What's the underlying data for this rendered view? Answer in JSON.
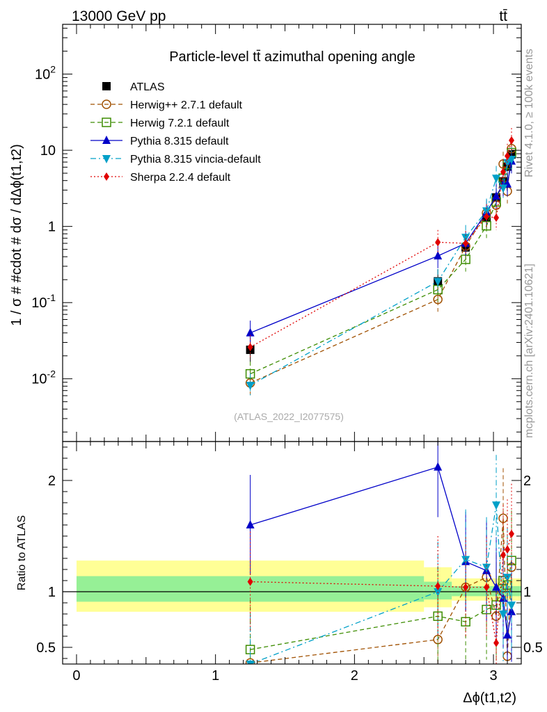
{
  "header": {
    "energy_label": "13000 GeV pp",
    "process_label": "tt̄",
    "side_label_top": "Rivet 4.1.0, ≥ 100k events",
    "side_label_bottom": "mcplots.cern.ch [arXiv:2401.10621]",
    "analysis_id": "(ATLAS_2022_I2077575)"
  },
  "chart_data": [
    {
      "type": "scatter",
      "title": "Particle-level tt̄ azimuthal opening angle",
      "xlabel": "Δϕ(t1,t2)",
      "ylabel": "1 / σ # #cdot # dσ / dΔϕ(t1,t2)",
      "yscale": "log",
      "xlim": [
        -0.1,
        3.2
      ],
      "ylim": [
        0.0015,
        450
      ],
      "xticks": [
        "0",
        "1",
        "2",
        "3"
      ],
      "yticks": [
        "10^-2",
        "10^-1",
        "1",
        "10",
        "10^2"
      ],
      "x": [
        1.25,
        2.6,
        2.8,
        2.95,
        3.02,
        3.07,
        3.1,
        3.13
      ],
      "series": [
        {
          "name": "ATLAS",
          "color": "#000000",
          "marker": "square",
          "line": "none",
          "values": [
            0.024,
            0.19,
            0.53,
            1.3,
            2.4,
            3.9,
            6.1,
            8.8
          ]
        },
        {
          "name": "Herwig++ 2.7.1 default",
          "color": "#a05000",
          "marker": "circle-open",
          "line": "dashed",
          "values": [
            0.0088,
            0.11,
            0.55,
            1.5,
            1.9,
            6.6,
            2.9,
            10.5
          ]
        },
        {
          "name": "Herwig 7.2.1 default",
          "color": "#3c8c00",
          "marker": "square-open",
          "line": "dashed",
          "values": [
            0.0116,
            0.148,
            0.37,
            1.02,
            2.1,
            4.3,
            6.5,
            9.3
          ]
        },
        {
          "name": "Pythia 8.315 default",
          "color": "#0000c8",
          "marker": "triangle-up",
          "line": "solid",
          "values": [
            0.04,
            0.41,
            0.6,
            1.55,
            2.5,
            3.6,
            3.6,
            7.2
          ]
        },
        {
          "name": "Pythia 8.315 vincia-default",
          "color": "#00a0c8",
          "marker": "triangle-down",
          "line": "dashdot",
          "values": [
            0.0082,
            0.19,
            0.72,
            1.6,
            4.3,
            3.2,
            6.9,
            7.6
          ]
        },
        {
          "name": "Sherpa 2.2.4 default",
          "color": "#e00000",
          "marker": "diamond",
          "line": "dotted",
          "values": [
            0.026,
            0.62,
            0.6,
            1.35,
            1.3,
            5.2,
            8.4,
            13.5
          ]
        }
      ]
    },
    {
      "type": "scatter",
      "ylabel": "Ratio to ATLAS",
      "xlim": [
        -0.1,
        3.2
      ],
      "ylim": [
        0.35,
        2.35
      ],
      "yticks": [
        "0.5",
        "1",
        "2"
      ],
      "x": [
        1.25,
        2.6,
        2.8,
        2.95,
        3.02,
        3.07,
        3.1,
        3.13
      ],
      "bands": [
        {
          "name": "yellow",
          "color": "#ffff96",
          "ranges": [
            [
              0,
              2.5,
              0.82,
              1.28
            ],
            [
              2.5,
              2.7,
              0.86,
              1.22
            ],
            [
              2.7,
              3.2,
              0.92,
              1.12
            ]
          ]
        },
        {
          "name": "green",
          "color": "#96f096",
          "ranges": [
            [
              0,
              2.5,
              0.91,
              1.14
            ],
            [
              2.5,
              2.7,
              0.93,
              1.09
            ],
            [
              2.7,
              3.2,
              0.96,
              1.05
            ]
          ]
        }
      ],
      "series": [
        {
          "name": "Herwig++ 2.7.1 default",
          "values": [
            0.36,
            0.57,
            1.04,
            1.13,
            0.78,
            1.66,
            0.42,
            1.22
          ]
        },
        {
          "name": "Herwig 7.2.1 default",
          "values": [
            0.48,
            0.78,
            0.73,
            0.84,
            0.88,
            1.1,
            1.06,
            1.28
          ]
        },
        {
          "name": "Pythia 8.315 default",
          "values": [
            1.6,
            2.12,
            1.27,
            1.19,
            1.04,
            0.94,
            0.61,
            0.82
          ]
        },
        {
          "name": "Pythia 8.315 vincia-default",
          "values": [
            0.35,
            1.0,
            1.29,
            1.22,
            1.78,
            0.8,
            1.13,
            0.88
          ]
        },
        {
          "name": "Sherpa 2.2.4 default",
          "values": [
            1.09,
            1.05,
            1.04,
            1.04,
            0.54,
            1.33,
            1.38,
            1.52
          ]
        }
      ]
    }
  ]
}
